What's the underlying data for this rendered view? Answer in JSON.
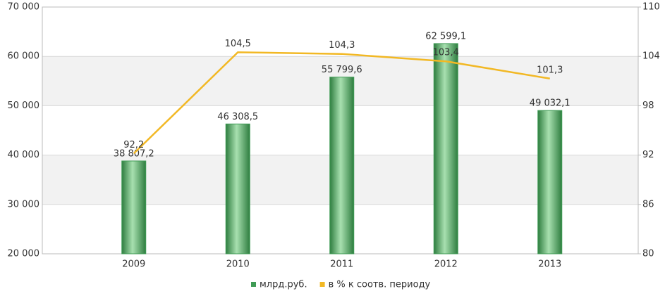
{
  "chart_data": {
    "type": "bar-line",
    "categories": [
      "2009",
      "2010",
      "2011",
      "2012",
      "2013"
    ],
    "series": [
      {
        "name": "млрд.руб.",
        "type": "bar",
        "color": "#3f9b55",
        "values": [
          38807.2,
          46308.5,
          55799.6,
          62599.1,
          49032.1
        ],
        "value_labels": [
          "38 807,2",
          "46 308,5",
          "55 799,6",
          "62 599,1",
          "49 032,1"
        ]
      },
      {
        "name": "в % к соотв. периоду",
        "type": "line",
        "axis": "y2",
        "color": "#f2b824",
        "values": [
          92.2,
          104.5,
          104.3,
          103.4,
          101.3
        ],
        "value_labels": [
          "92,2",
          "104,5",
          "104,3",
          "103,4",
          "101,3"
        ]
      }
    ],
    "ylim": [
      20000,
      70000
    ],
    "yticks": [
      {
        "value": 20000,
        "label": "20 000"
      },
      {
        "value": 30000,
        "label": "30 000"
      },
      {
        "value": 40000,
        "label": "40 000"
      },
      {
        "value": 50000,
        "label": "50 000"
      },
      {
        "value": 60000,
        "label": "60 000"
      },
      {
        "value": 70000,
        "label": "70 000"
      }
    ],
    "y2lim": [
      80,
      110
    ],
    "y2ticks": [
      80,
      86,
      92,
      98,
      104,
      110
    ],
    "grid": true,
    "legend": "bottom"
  }
}
